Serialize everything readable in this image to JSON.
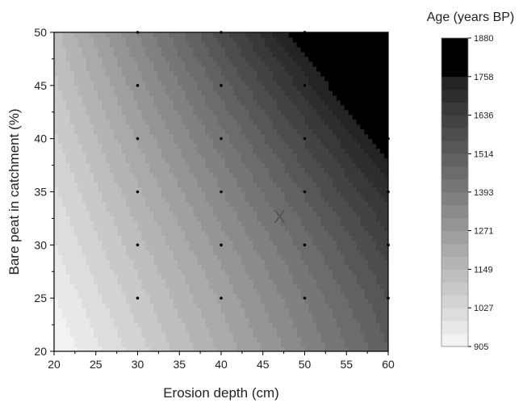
{
  "chart_data": {
    "type": "heatmap",
    "subtype": "filled-contour",
    "xlabel": "Erosion depth (cm)",
    "ylabel": "Bare peat in catchment (%)",
    "xlim": [
      20,
      60
    ],
    "ylim": [
      20,
      50
    ],
    "xticks": [
      "20",
      "25",
      "30",
      "35",
      "40",
      "45",
      "50",
      "55",
      "60"
    ],
    "yticks": [
      "20",
      "25",
      "30",
      "35",
      "40",
      "45",
      "50"
    ],
    "grid": false,
    "colorbar": {
      "title": "Age (years BP)",
      "range": [
        905,
        1880
      ],
      "ticks": [
        "1880",
        "1758",
        "1636",
        "1514",
        "1393",
        "1271",
        "1149",
        "1027",
        "905"
      ],
      "color_low": "#f7f7f7",
      "color_high": "#000000",
      "saturated_level": 1758,
      "levels": 24
    },
    "sample_points": [
      {
        "x": 30,
        "y": 25
      },
      {
        "x": 30,
        "y": 30
      },
      {
        "x": 30,
        "y": 35
      },
      {
        "x": 30,
        "y": 40
      },
      {
        "x": 30,
        "y": 45
      },
      {
        "x": 30,
        "y": 50
      },
      {
        "x": 40,
        "y": 25
      },
      {
        "x": 40,
        "y": 30
      },
      {
        "x": 40,
        "y": 35
      },
      {
        "x": 40,
        "y": 40
      },
      {
        "x": 40,
        "y": 45
      },
      {
        "x": 40,
        "y": 50
      },
      {
        "x": 50,
        "y": 25
      },
      {
        "x": 50,
        "y": 30
      },
      {
        "x": 50,
        "y": 35
      },
      {
        "x": 50,
        "y": 40
      },
      {
        "x": 50,
        "y": 45
      },
      {
        "x": 50,
        "y": 50
      },
      {
        "x": 60,
        "y": 25
      },
      {
        "x": 60,
        "y": 30
      },
      {
        "x": 60,
        "y": 35
      },
      {
        "x": 60,
        "y": 40
      }
    ],
    "marker": {
      "label": "X",
      "x": 47,
      "y": 32.7
    }
  }
}
